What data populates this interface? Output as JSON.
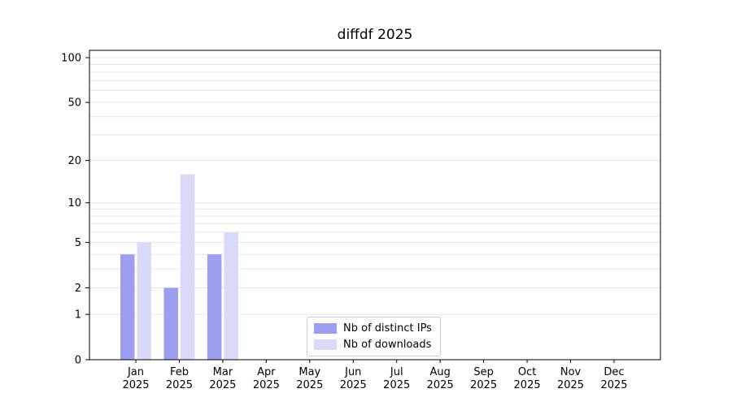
{
  "title": "diffdf 2025",
  "colors": {
    "axis": "#000000",
    "grid": "#e5e5e5",
    "legend_border": "#cccccc"
  },
  "legend": {
    "items": [
      {
        "label": "Nb of distinct IPs"
      },
      {
        "label": "Nb of downloads"
      }
    ]
  },
  "chart_data": {
    "type": "bar",
    "title": "diffdf 2025",
    "categories": [
      "Jan 2025",
      "Feb 2025",
      "Mar 2025",
      "Apr 2025",
      "May 2025",
      "Jun 2025",
      "Jul 2025",
      "Aug 2025",
      "Sep 2025",
      "Oct 2025",
      "Nov 2025",
      "Dec 2025"
    ],
    "series": [
      {
        "name": "Nb of distinct IPs",
        "color": "#9c9ef0",
        "values": [
          4,
          2,
          4,
          0,
          0,
          0,
          0,
          0,
          0,
          0,
          0,
          0
        ]
      },
      {
        "name": "Nb of downloads",
        "color": "#d8daf8",
        "values": [
          5,
          16,
          6,
          0,
          0,
          0,
          0,
          0,
          0,
          0,
          0,
          0
        ]
      }
    ],
    "xlabel": "",
    "ylabel": "",
    "y_scale": "log1p",
    "ylim": [
      0,
      112
    ],
    "y_ticks": [
      0,
      1,
      2,
      5,
      10,
      20,
      50,
      100
    ],
    "y_minor_gridlines": [
      3,
      4,
      6,
      7,
      8,
      9,
      30,
      40,
      60,
      70,
      80,
      90
    ],
    "grid": "horizontal",
    "legend_position": "lower center"
  }
}
